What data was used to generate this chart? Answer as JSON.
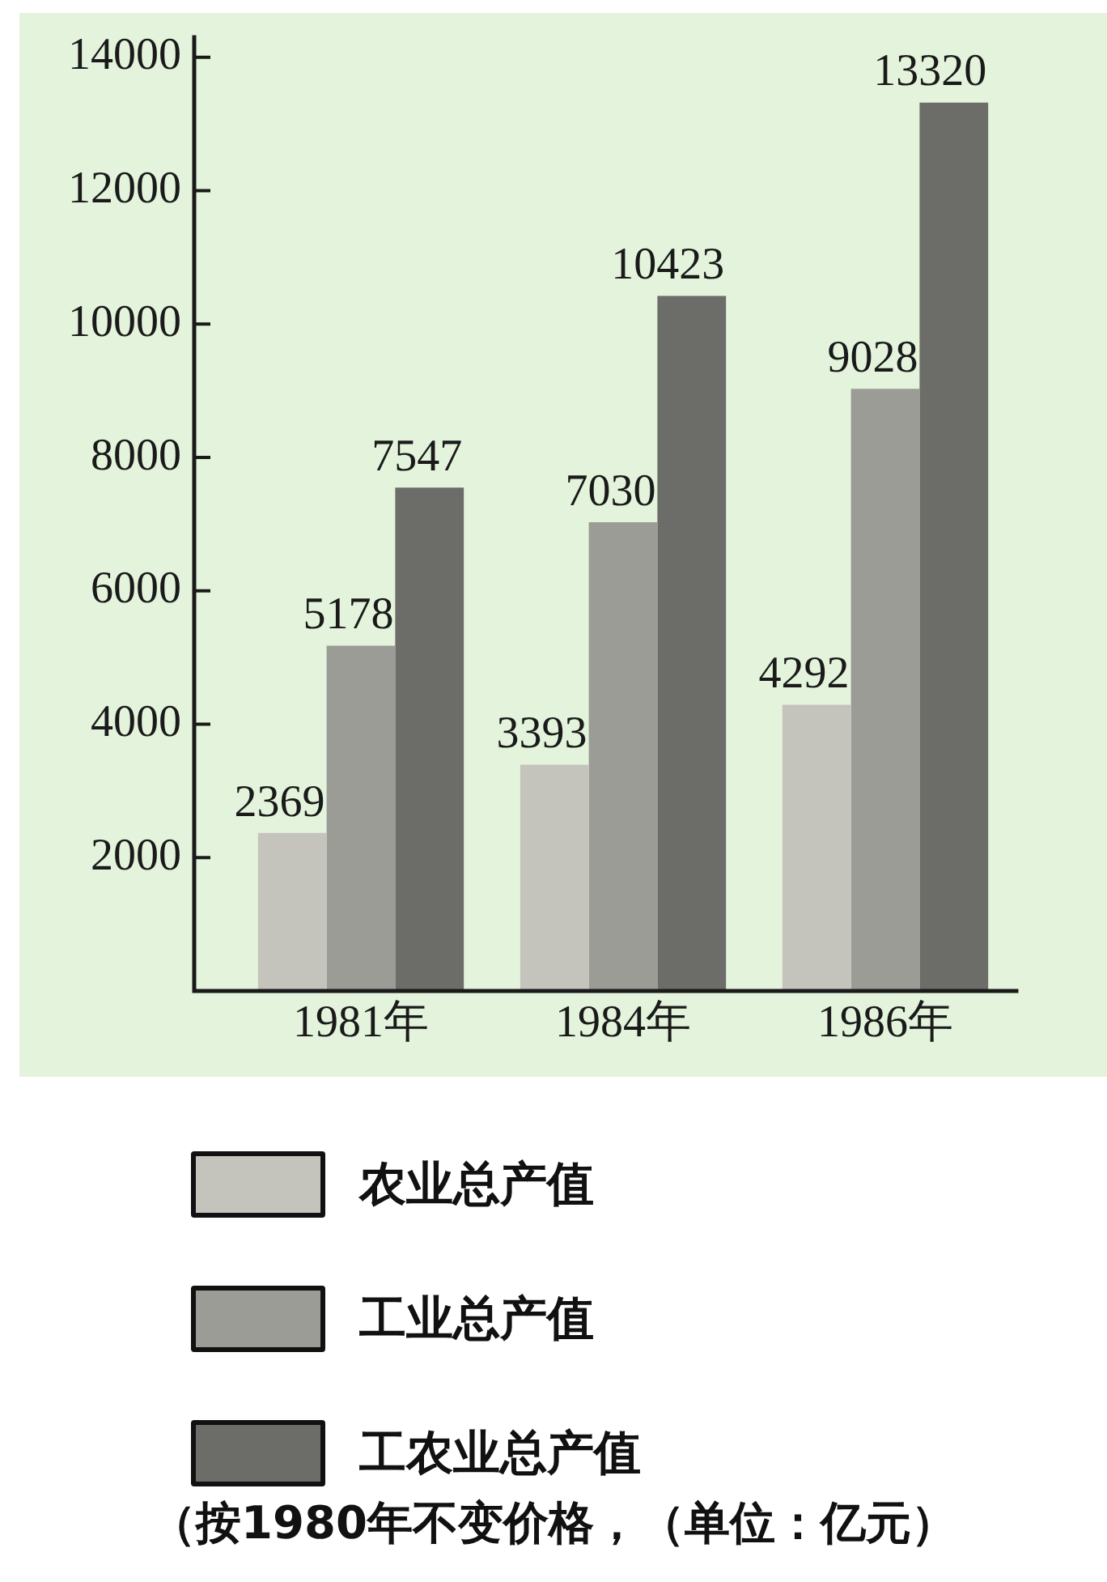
{
  "chart_data": {
    "type": "bar",
    "categories": [
      "1981年",
      "1984年",
      "1986年"
    ],
    "series": [
      {
        "name": "农业总产值",
        "color": "#c4c4bc",
        "values": [
          2369,
          3393,
          4292
        ]
      },
      {
        "name": "工业总产值",
        "color": "#9c9c96",
        "values": [
          5178,
          7030,
          9028
        ]
      },
      {
        "name": "工农业总产值",
        "color": "#6c6c68",
        "values": [
          7547,
          10423,
          13320
        ]
      }
    ],
    "ylim": [
      0,
      14300
    ],
    "yticks": [
      2000,
      4000,
      6000,
      8000,
      10000,
      12000,
      14000
    ],
    "data_labels": true,
    "legend": "bottom",
    "annotations": [
      "（按1980年不变价格，（单位：亿元）"
    ]
  }
}
